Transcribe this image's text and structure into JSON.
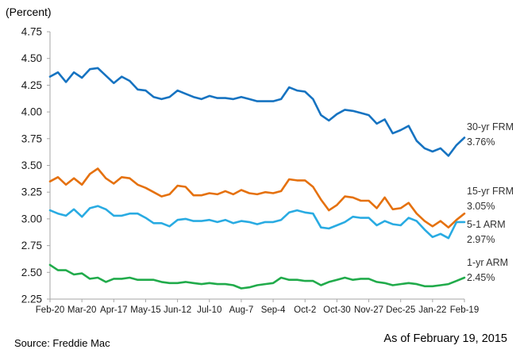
{
  "header": {
    "y_axis_unit": "(Percent)"
  },
  "footer": {
    "source": "Source: Freddie Mac",
    "as_of": "As of February 19, 2015"
  },
  "chart_data": {
    "type": "line",
    "title": "",
    "xlabel": "",
    "ylabel": "(Percent)",
    "ylim": [
      2.25,
      4.75
    ],
    "ytick_step": 0.25,
    "ytick_labels": [
      "4.75",
      "4.50",
      "4.25",
      "4.00",
      "3.75",
      "3.50",
      "3.25",
      "3.00",
      "2.75",
      "2.50",
      "2.25"
    ],
    "x_tick_labels": [
      "Feb-20",
      "Mar-20",
      "Apr-17",
      "May-15",
      "Jun-12",
      "Jul-10",
      "Aug-7",
      "Sep-4",
      "Oct-2",
      "Oct-30",
      "Nov-27",
      "Dec-25",
      "Jan-22",
      "Feb-19"
    ],
    "x_tick_every": 4,
    "points_per_series": 53,
    "grid": false,
    "legend_position": "right-end-labels",
    "axis_color": "#a6a6a6",
    "series": [
      {
        "name": "30-yr FRM",
        "end_label_value": "3.76%",
        "color": "#1673C1",
        "values": [
          4.33,
          4.37,
          4.28,
          4.37,
          4.32,
          4.4,
          4.41,
          4.34,
          4.27,
          4.33,
          4.29,
          4.21,
          4.2,
          4.14,
          4.12,
          4.14,
          4.2,
          4.17,
          4.14,
          4.12,
          4.15,
          4.13,
          4.13,
          4.12,
          4.14,
          4.12,
          4.1,
          4.1,
          4.1,
          4.12,
          4.23,
          4.2,
          4.19,
          4.12,
          3.97,
          3.92,
          3.98,
          4.02,
          4.01,
          3.99,
          3.97,
          3.89,
          3.93,
          3.8,
          3.83,
          3.87,
          3.73,
          3.66,
          3.63,
          3.66,
          3.59,
          3.69,
          3.76
        ]
      },
      {
        "name": "15-yr FRM",
        "end_label_value": "3.05%",
        "color": "#E5710E",
        "values": [
          3.35,
          3.39,
          3.32,
          3.38,
          3.32,
          3.42,
          3.47,
          3.38,
          3.33,
          3.39,
          3.38,
          3.32,
          3.29,
          3.25,
          3.21,
          3.23,
          3.31,
          3.3,
          3.22,
          3.22,
          3.24,
          3.23,
          3.26,
          3.23,
          3.27,
          3.24,
          3.23,
          3.25,
          3.24,
          3.26,
          3.37,
          3.36,
          3.36,
          3.3,
          3.18,
          3.08,
          3.13,
          3.21,
          3.2,
          3.17,
          3.17,
          3.1,
          3.2,
          3.09,
          3.1,
          3.15,
          3.05,
          2.98,
          2.93,
          2.98,
          2.92,
          2.99,
          3.05
        ]
      },
      {
        "name": "5-1 ARM",
        "end_label_value": "2.97%",
        "color": "#29ABE2",
        "values": [
          3.08,
          3.05,
          3.03,
          3.09,
          3.02,
          3.1,
          3.12,
          3.09,
          3.03,
          3.03,
          3.05,
          3.05,
          3.01,
          2.96,
          2.96,
          2.93,
          2.99,
          3.0,
          2.98,
          2.98,
          2.99,
          2.97,
          2.99,
          2.96,
          2.98,
          2.97,
          2.95,
          2.97,
          2.97,
          2.99,
          3.06,
          3.08,
          3.06,
          3.05,
          2.92,
          2.91,
          2.94,
          2.97,
          3.02,
          3.01,
          3.01,
          2.94,
          2.98,
          2.95,
          2.94,
          3.01,
          2.98,
          2.9,
          2.83,
          2.86,
          2.82,
          2.97,
          2.97
        ]
      },
      {
        "name": "1-yr ARM",
        "end_label_value": "2.45%",
        "color": "#21AB4B",
        "values": [
          2.57,
          2.52,
          2.52,
          2.48,
          2.49,
          2.44,
          2.45,
          2.41,
          2.44,
          2.44,
          2.45,
          2.43,
          2.43,
          2.43,
          2.41,
          2.4,
          2.4,
          2.41,
          2.4,
          2.39,
          2.4,
          2.39,
          2.39,
          2.38,
          2.35,
          2.36,
          2.38,
          2.39,
          2.4,
          2.45,
          2.43,
          2.43,
          2.42,
          2.42,
          2.38,
          2.41,
          2.43,
          2.45,
          2.43,
          2.44,
          2.44,
          2.41,
          2.4,
          2.38,
          2.39,
          2.4,
          2.39,
          2.37,
          2.37,
          2.38,
          2.39,
          2.42,
          2.45
        ]
      }
    ]
  }
}
